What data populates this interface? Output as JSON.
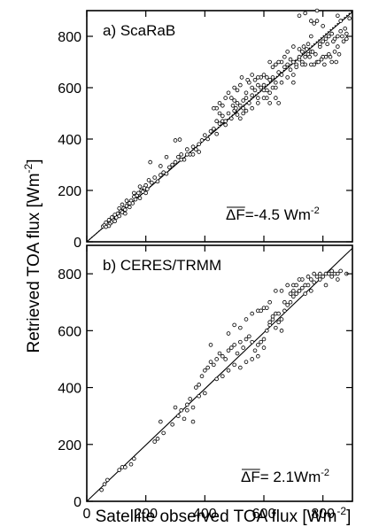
{
  "figure": {
    "ylabel": "Retrieved TOA flux [Wm",
    "ylabel_sup": "-2",
    "ylabel_close": "]",
    "xlabel": "Satellite observed TOA flux [Wm",
    "xlabel_sup": "-2",
    "xlabel_close": "]"
  },
  "chart_data": [
    {
      "type": "scatter",
      "label": "a) ScaRaB",
      "annotation": {
        "symbol": "ΔF",
        "value": "=-4.5 Wm",
        "sup": "-2"
      },
      "xlim": [
        0,
        900
      ],
      "ylim": [
        0,
        900
      ],
      "xticks": [
        0,
        200,
        400,
        600,
        800
      ],
      "yticks": [
        0,
        200,
        400,
        600,
        800
      ],
      "xtick_labels": [],
      "ytick_labels": [
        "0",
        "200",
        "400",
        "600",
        "800"
      ],
      "lines": [
        {
          "style": "solid",
          "x": [
            0,
            900
          ],
          "y": [
            0,
            895
          ]
        },
        {
          "style": "dotted",
          "x": [
            0,
            900
          ],
          "y": [
            0,
            900
          ]
        }
      ],
      "points": [
        [
          55,
          60
        ],
        [
          60,
          65
        ],
        [
          65,
          58
        ],
        [
          70,
          70
        ],
        [
          75,
          62
        ],
        [
          80,
          72
        ],
        [
          85,
          78
        ],
        [
          90,
          85
        ],
        [
          95,
          80
        ],
        [
          100,
          95
        ],
        [
          105,
          110
        ],
        [
          110,
          100
        ],
        [
          115,
          120
        ],
        [
          120,
          115
        ],
        [
          125,
          130
        ],
        [
          130,
          125
        ],
        [
          135,
          140
        ],
        [
          140,
          150
        ],
        [
          145,
          135
        ],
        [
          150,
          160
        ],
        [
          155,
          150
        ],
        [
          160,
          175
        ],
        [
          165,
          165
        ],
        [
          170,
          180
        ],
        [
          175,
          190
        ],
        [
          180,
          170
        ],
        [
          185,
          200
        ],
        [
          190,
          195
        ],
        [
          195,
          210
        ],
        [
          200,
          220
        ],
        [
          205,
          205
        ],
        [
          210,
          240
        ],
        [
          220,
          230
        ],
        [
          230,
          250
        ],
        [
          240,
          235
        ],
        [
          250,
          260
        ],
        [
          260,
          270
        ],
        [
          270,
          265
        ],
        [
          280,
          290
        ],
        [
          290,
          300
        ],
        [
          300,
          310
        ],
        [
          310,
          330
        ],
        [
          320,
          340
        ],
        [
          330,
          320
        ],
        [
          340,
          360
        ],
        [
          350,
          340
        ],
        [
          360,
          370
        ],
        [
          370,
          360
        ],
        [
          380,
          350
        ],
        [
          390,
          395
        ],
        [
          300,
          395
        ],
        [
          315,
          398
        ],
        [
          250,
          295
        ],
        [
          270,
          330
        ],
        [
          200,
          190
        ],
        [
          180,
          215
        ],
        [
          215,
          310
        ],
        [
          360,
          340
        ],
        [
          380,
          380
        ],
        [
          340,
          340
        ],
        [
          320,
          320
        ],
        [
          400,
          415
        ],
        [
          410,
          400
        ],
        [
          420,
          430
        ],
        [
          430,
          440
        ],
        [
          440,
          420
        ],
        [
          450,
          460
        ],
        [
          460,
          470
        ],
        [
          470,
          455
        ],
        [
          480,
          500
        ],
        [
          490,
          480
        ],
        [
          500,
          510
        ],
        [
          510,
          495
        ],
        [
          520,
          530
        ],
        [
          530,
          520
        ],
        [
          540,
          560
        ],
        [
          550,
          540
        ],
        [
          560,
          570
        ],
        [
          570,
          590
        ],
        [
          580,
          560
        ],
        [
          590,
          600
        ],
        [
          600,
          610
        ],
        [
          610,
          590
        ],
        [
          620,
          630
        ],
        [
          630,
          640
        ],
        [
          640,
          620
        ],
        [
          650,
          660
        ],
        [
          660,
          650
        ],
        [
          670,
          680
        ],
        [
          680,
          690
        ],
        [
          690,
          670
        ],
        [
          700,
          700
        ],
        [
          710,
          690
        ],
        [
          720,
          710
        ],
        [
          730,
          700
        ],
        [
          740,
          720
        ],
        [
          750,
          730
        ],
        [
          760,
          740
        ],
        [
          770,
          690
        ],
        [
          780,
          700
        ],
        [
          790,
          760
        ],
        [
          800,
          780
        ],
        [
          810,
          790
        ],
        [
          820,
          800
        ],
        [
          830,
          810
        ],
        [
          840,
          790
        ],
        [
          850,
          800
        ],
        [
          860,
          820
        ],
        [
          870,
          780
        ],
        [
          880,
          790
        ],
        [
          440,
          520
        ],
        [
          450,
          540
        ],
        [
          460,
          530
        ],
        [
          470,
          560
        ],
        [
          480,
          580
        ],
        [
          490,
          560
        ],
        [
          500,
          600
        ],
        [
          510,
          590
        ],
        [
          520,
          610
        ],
        [
          530,
          550
        ],
        [
          540,
          580
        ],
        [
          550,
          620
        ],
        [
          560,
          600
        ],
        [
          570,
          630
        ],
        [
          580,
          610
        ],
        [
          590,
          640
        ],
        [
          600,
          590
        ],
        [
          610,
          560
        ],
        [
          620,
          580
        ],
        [
          630,
          600
        ],
        [
          640,
          560
        ],
        [
          650,
          540
        ],
        [
          450,
          500
        ],
        [
          470,
          470
        ],
        [
          510,
          540
        ],
        [
          440,
          470
        ],
        [
          430,
          520
        ],
        [
          460,
          490
        ],
        [
          500,
          550
        ],
        [
          530,
          500
        ],
        [
          660,
          700
        ],
        [
          670,
          720
        ],
        [
          680,
          740
        ],
        [
          690,
          710
        ],
        [
          700,
          760
        ],
        [
          710,
          680
        ],
        [
          720,
          750
        ],
        [
          730,
          740
        ],
        [
          740,
          690
        ],
        [
          750,
          770
        ],
        [
          760,
          800
        ],
        [
          770,
          850
        ],
        [
          780,
          860
        ],
        [
          790,
          770
        ],
        [
          800,
          840
        ],
        [
          810,
          720
        ],
        [
          820,
          730
        ],
        [
          830,
          700
        ],
        [
          840,
          740
        ],
        [
          850,
          760
        ],
        [
          720,
          880
        ],
        [
          740,
          890
        ],
        [
          760,
          860
        ],
        [
          780,
          900
        ],
        [
          800,
          720
        ],
        [
          760,
          690
        ],
        [
          730,
          690
        ],
        [
          700,
          650
        ],
        [
          650,
          700
        ],
        [
          640,
          690
        ],
        [
          610,
          640
        ],
        [
          620,
          700
        ],
        [
          630,
          680
        ],
        [
          600,
          650
        ],
        [
          580,
          640
        ],
        [
          560,
          650
        ],
        [
          545,
          630
        ],
        [
          525,
          640
        ],
        [
          505,
          520
        ],
        [
          495,
          530
        ],
        [
          520,
          480
        ],
        [
          540,
          510
        ],
        [
          560,
          520
        ],
        [
          580,
          540
        ],
        [
          600,
          560
        ],
        [
          620,
          540
        ],
        [
          640,
          600
        ],
        [
          660,
          620
        ],
        [
          680,
          640
        ],
        [
          700,
          620
        ],
        [
          860,
          860
        ],
        [
          875,
          830
        ],
        [
          850,
          880
        ],
        [
          890,
          870
        ],
        [
          720,
          720
        ],
        [
          735,
          760
        ],
        [
          745,
          750
        ],
        [
          755,
          720
        ],
        [
          765,
          740
        ],
        [
          775,
          730
        ],
        [
          785,
          700
        ],
        [
          795,
          710
        ],
        [
          805,
          690
        ],
        [
          815,
          770
        ],
        [
          825,
          720
        ],
        [
          835,
          780
        ],
        [
          845,
          700
        ],
        [
          855,
          730
        ],
        [
          865,
          800
        ],
        [
          880,
          810
        ],
        [
          120,
          145
        ],
        [
          135,
          160
        ],
        [
          145,
          150
        ],
        [
          160,
          190
        ],
        [
          130,
          110
        ],
        [
          110,
          130
        ],
        [
          95,
          105
        ],
        [
          85,
          95
        ],
        [
          75,
          85
        ],
        [
          65,
          75
        ]
      ]
    },
    {
      "type": "scatter",
      "label": "b) CERES/TRMM",
      "annotation": {
        "symbol": "ΔF",
        "value": "= 2.1Wm",
        "sup": "-2"
      },
      "xlim": [
        0,
        900
      ],
      "ylim": [
        0,
        900
      ],
      "xticks": [
        0,
        200,
        400,
        600,
        800
      ],
      "yticks": [
        0,
        200,
        400,
        600,
        800
      ],
      "xtick_labels": [
        "0",
        "200",
        "400",
        "600",
        "800"
      ],
      "ytick_labels": [
        "0",
        "200",
        "400",
        "600",
        "800"
      ],
      "lines": [
        {
          "style": "solid",
          "x": [
            0,
            900
          ],
          "y": [
            0,
            890
          ]
        }
      ],
      "points": [
        [
          50,
          40
        ],
        [
          60,
          60
        ],
        [
          70,
          75
        ],
        [
          110,
          110
        ],
        [
          120,
          120
        ],
        [
          130,
          120
        ],
        [
          150,
          130
        ],
        [
          160,
          150
        ],
        [
          230,
          210
        ],
        [
          240,
          220
        ],
        [
          250,
          280
        ],
        [
          260,
          240
        ],
        [
          290,
          270
        ],
        [
          300,
          330
        ],
        [
          310,
          300
        ],
        [
          320,
          320
        ],
        [
          330,
          290
        ],
        [
          340,
          340
        ],
        [
          350,
          360
        ],
        [
          360,
          280
        ],
        [
          370,
          400
        ],
        [
          380,
          410
        ],
        [
          390,
          440
        ],
        [
          400,
          460
        ],
        [
          410,
          470
        ],
        [
          420,
          490
        ],
        [
          430,
          480
        ],
        [
          440,
          500
        ],
        [
          450,
          520
        ],
        [
          460,
          510
        ],
        [
          470,
          500
        ],
        [
          480,
          530
        ],
        [
          490,
          540
        ],
        [
          500,
          550
        ],
        [
          510,
          520
        ],
        [
          520,
          560
        ],
        [
          530,
          540
        ],
        [
          540,
          570
        ],
        [
          550,
          580
        ],
        [
          560,
          560
        ],
        [
          570,
          530
        ],
        [
          580,
          550
        ],
        [
          590,
          560
        ],
        [
          600,
          570
        ],
        [
          610,
          600
        ],
        [
          620,
          620
        ],
        [
          630,
          640
        ],
        [
          640,
          660
        ],
        [
          650,
          630
        ],
        [
          660,
          640
        ],
        [
          670,
          670
        ],
        [
          680,
          690
        ],
        [
          690,
          700
        ],
        [
          700,
          720
        ],
        [
          710,
          730
        ],
        [
          720,
          740
        ],
        [
          730,
          750
        ],
        [
          740,
          760
        ],
        [
          750,
          760
        ],
        [
          760,
          780
        ],
        [
          770,
          770
        ],
        [
          780,
          790
        ],
        [
          790,
          800
        ],
        [
          800,
          790
        ],
        [
          810,
          800
        ],
        [
          820,
          800
        ],
        [
          830,
          810
        ],
        [
          840,
          800
        ],
        [
          850,
          800
        ],
        [
          860,
          810
        ],
        [
          880,
          800
        ],
        [
          420,
          550
        ],
        [
          480,
          590
        ],
        [
          500,
          620
        ],
        [
          520,
          610
        ],
        [
          540,
          640
        ],
        [
          560,
          660
        ],
        [
          580,
          670
        ],
        [
          600,
          680
        ],
        [
          620,
          700
        ],
        [
          640,
          740
        ],
        [
          660,
          740
        ],
        [
          680,
          760
        ],
        [
          700,
          760
        ],
        [
          720,
          740
        ],
        [
          740,
          730
        ],
        [
          760,
          740
        ],
        [
          640,
          610
        ],
        [
          660,
          600
        ],
        [
          620,
          630
        ],
        [
          600,
          540
        ],
        [
          580,
          510
        ],
        [
          560,
          500
        ],
        [
          540,
          490
        ],
        [
          520,
          470
        ],
        [
          500,
          480
        ],
        [
          480,
          460
        ],
        [
          460,
          440
        ],
        [
          440,
          430
        ],
        [
          400,
          380
        ],
        [
          380,
          370
        ],
        [
          360,
          330
        ],
        [
          340,
          320
        ],
        [
          590,
          670
        ],
        [
          610,
          680
        ],
        [
          630,
          650
        ],
        [
          650,
          660
        ],
        [
          670,
          700
        ],
        [
          690,
          730
        ],
        [
          710,
          760
        ],
        [
          730,
          780
        ],
        [
          750,
          790
        ],
        [
          770,
          800
        ],
        [
          790,
          780
        ],
        [
          810,
          760
        ],
        [
          830,
          790
        ],
        [
          850,
          780
        ],
        [
          700,
          740
        ],
        [
          720,
          780
        ]
      ]
    }
  ]
}
